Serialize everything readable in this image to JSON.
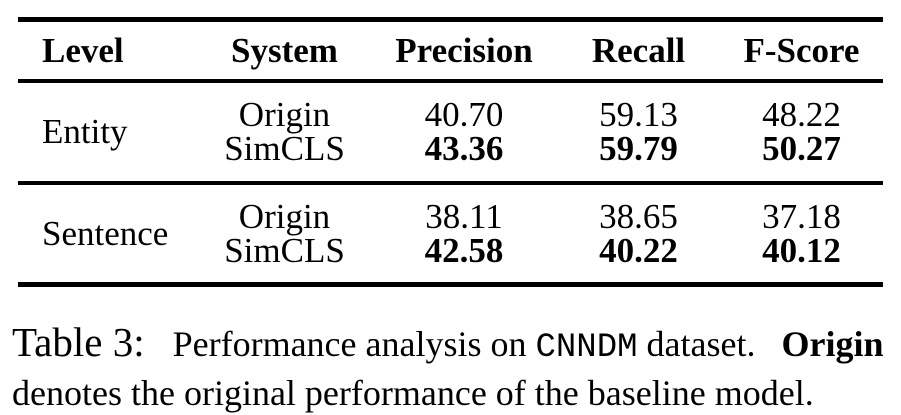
{
  "table": {
    "headers": [
      "Level",
      "System",
      "Precision",
      "Recall",
      "F-Score"
    ],
    "groups": [
      {
        "level": "Entity",
        "rows": [
          {
            "system": "Origin",
            "precision": "40.70",
            "recall": "59.13",
            "fscore": "48.22",
            "bold": false
          },
          {
            "system": "SimCLS",
            "precision": "43.36",
            "recall": "59.79",
            "fscore": "50.27",
            "bold": true
          }
        ]
      },
      {
        "level": "Sentence",
        "rows": [
          {
            "system": "Origin",
            "precision": "38.11",
            "recall": "38.65",
            "fscore": "37.18",
            "bold": false
          },
          {
            "system": "SimCLS",
            "precision": "42.58",
            "recall": "40.22",
            "fscore": "40.12",
            "bold": true
          }
        ]
      }
    ]
  },
  "caption": {
    "label": "Table 3:",
    "part1": "Performance analysis on",
    "dataset": "CNNDM",
    "part2": "dataset.",
    "origin": "Origin",
    "line2": "denotes the original performance of the baseline model."
  },
  "colors": {
    "text": "#000000",
    "background": "#ffffff",
    "rule": "#000000"
  }
}
